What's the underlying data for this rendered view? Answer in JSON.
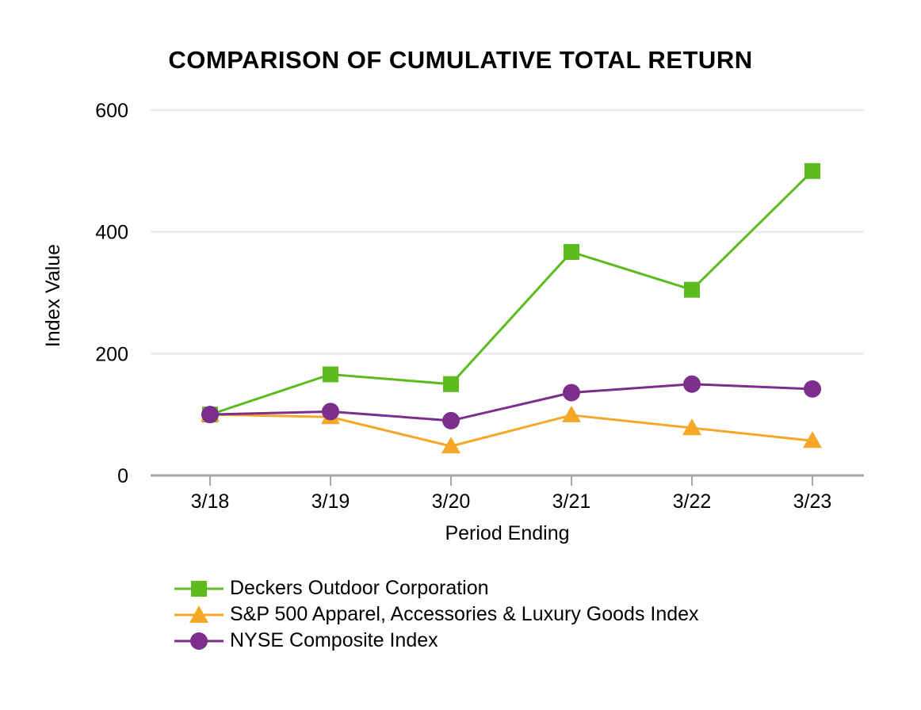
{
  "title": "COMPARISON OF CUMULATIVE TOTAL RETURN",
  "chart_data": {
    "type": "line",
    "title": "COMPARISON OF CUMULATIVE TOTAL RETURN",
    "xlabel": "Period Ending",
    "ylabel": "Index Value",
    "categories": [
      "3/18",
      "3/19",
      "3/20",
      "3/21",
      "3/22",
      "3/23"
    ],
    "ylim": [
      0,
      600
    ],
    "yticks": [
      0,
      200,
      400,
      600
    ],
    "grid": true,
    "legend_position": "bottom-left",
    "series": [
      {
        "name": "Deckers Outdoor Corporation",
        "marker": "square",
        "color": "#5bbb1f",
        "values": [
          100,
          166,
          150,
          367,
          305,
          500
        ]
      },
      {
        "name": "S&P 500 Apparel, Accessories & Luxury Goods Index",
        "marker": "triangle",
        "color": "#f5a728",
        "values": [
          100,
          96,
          48,
          99,
          78,
          57
        ]
      },
      {
        "name": "NYSE Composite Index",
        "marker": "circle",
        "color": "#7b2e8c",
        "values": [
          100,
          105,
          90,
          136,
          150,
          142
        ]
      }
    ]
  },
  "colors": {
    "gridline": "#ebebeb",
    "axis": "#a8a8a8",
    "text": "#000000"
  }
}
